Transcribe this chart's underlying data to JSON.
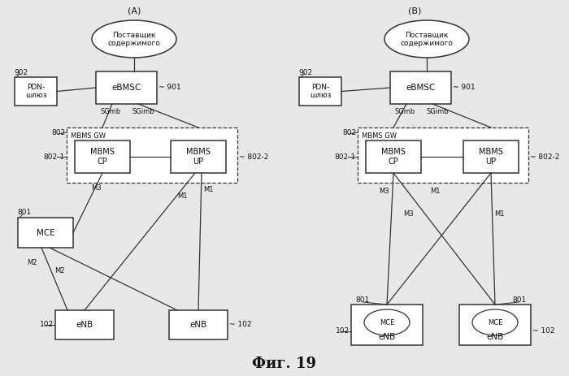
{
  "title": "Фиг. 19",
  "bg_color": "#e8e8e8",
  "label_A": "(A)",
  "label_B": "(B)",
  "font_title": 13,
  "font_label": 7,
  "font_ref": 6.5,
  "font_main": 7,
  "diagram_A": {
    "ellipse_content": "Поставщик\nсодержимого",
    "eBMSC_label": "eBMSC",
    "ref_901": "901",
    "PDN_label": "PDN-\nшлюз",
    "ref_902": "902",
    "SGmb": "SGmb",
    "SGimb": "SGimb",
    "MBMS_GW_label": "MBMS GW",
    "ref_802": "802",
    "MBMS_CP_label": "MBMS\nCP",
    "ref_802_1": "802-1",
    "MBMS_UP_label": "MBMS\nUP",
    "ref_802_2": "802-2",
    "MCE_label": "MCE",
    "ref_801": "801",
    "eNB1_label": "eNB",
    "ref_102_1": "102",
    "eNB2_label": "eNB",
    "ref_102_2": "102",
    "M3": "M3",
    "M1_1": "M1",
    "M1_2": "M1",
    "M2_1": "M2",
    "M2_2": "M2"
  },
  "diagram_B": {
    "ellipse_content": "Поставщик\nсодержимого",
    "eBMSC_label": "eBMSC",
    "ref_901": "901",
    "PDN_label": "PDN-\nшлюз",
    "ref_902": "902",
    "SGmb": "SGmb",
    "SGimb": "SGimb",
    "MBMS_GW_label": "MBMS GW",
    "ref_802": "802",
    "MBMS_CP_label": "MBMS\nCP",
    "ref_802_1": "802-1",
    "MBMS_UP_label": "MBMS\nUP",
    "ref_802_2": "802-2",
    "MCE1_label": "MCE",
    "MCE2_label": "MCE",
    "ref_801_1": "801",
    "ref_801_2": "801",
    "eNB1_label": "eNB",
    "ref_102_1": "102",
    "eNB2_label": "eNB",
    "ref_102_2": "102",
    "M3_1": "M3",
    "M3_2": "M3",
    "M1_1": "M1",
    "M1_2": "M1"
  }
}
